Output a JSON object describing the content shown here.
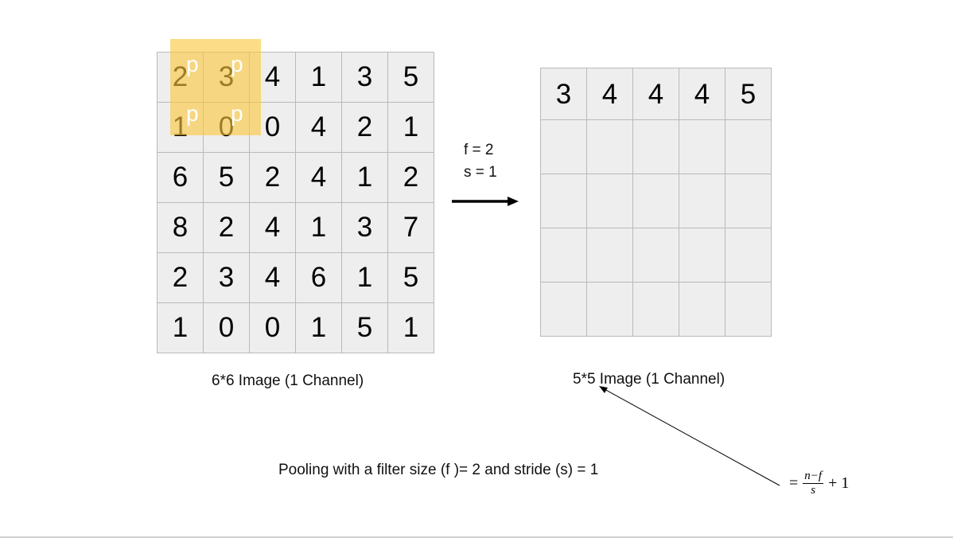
{
  "input_grid": {
    "rows": [
      [
        "2",
        "3",
        "4",
        "1",
        "3",
        "5"
      ],
      [
        "1",
        "0",
        "0",
        "4",
        "2",
        "1"
      ],
      [
        "6",
        "5",
        "2",
        "4",
        "1",
        "2"
      ],
      [
        "8",
        "2",
        "4",
        "1",
        "3",
        "7"
      ],
      [
        "2",
        "3",
        "4",
        "6",
        "1",
        "5"
      ],
      [
        "1",
        "0",
        "0",
        "1",
        "5",
        "1"
      ]
    ],
    "caption": "6*6 Image (1 Channel)"
  },
  "filter": {
    "marker": "p",
    "color": "#fac63c"
  },
  "params": {
    "f_label": "f = 2",
    "s_label": "s = 1"
  },
  "output_grid": {
    "rows": [
      [
        "3",
        "4",
        "4",
        "4",
        "5"
      ],
      [
        "",
        "",
        "",
        "",
        ""
      ],
      [
        "",
        "",
        "",
        "",
        ""
      ],
      [
        "",
        "",
        "",
        "",
        ""
      ],
      [
        "",
        "",
        "",
        "",
        ""
      ]
    ],
    "caption": "5*5 Image (1 Channel)"
  },
  "description": "Pooling with a filter size (f )= 2 and stride (s) = 1",
  "formula": {
    "prefix": "=",
    "numerator": "n−f",
    "denominator": "s",
    "suffix": "+ 1"
  }
}
